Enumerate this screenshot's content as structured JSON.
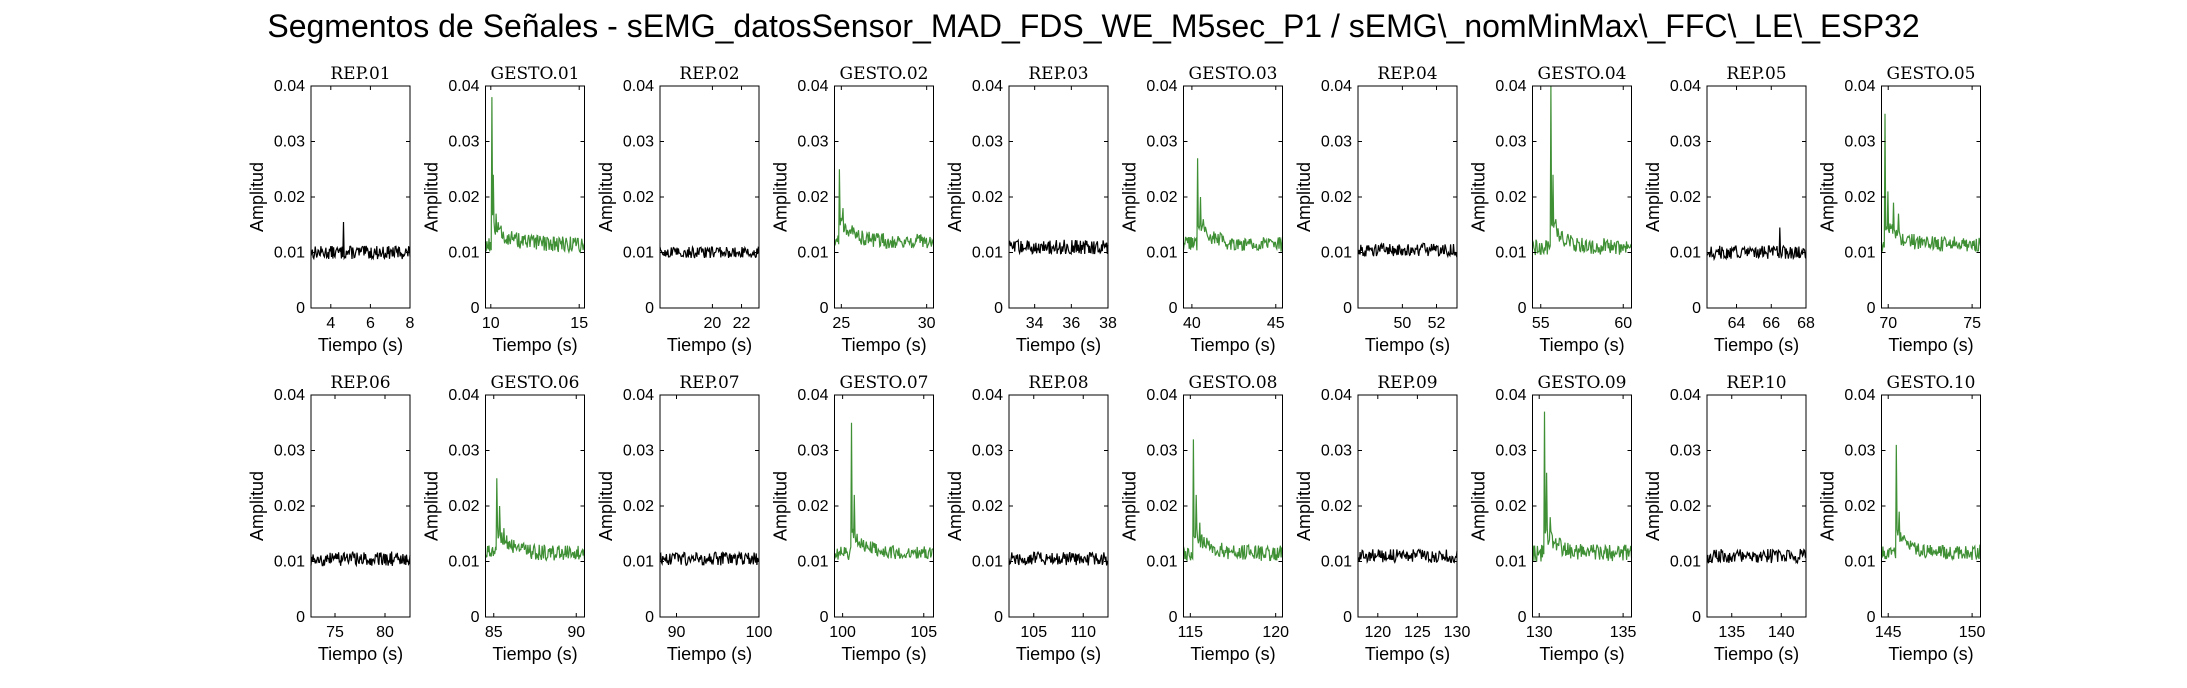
{
  "figure": {
    "title": "Segmentos de Señales - sEMG_datosSensor_MAD_FDS_WE_M5sec_P1 / sEMG\\_nomMinMax\\_FFC\\_LE\\_ESP32"
  },
  "colors": {
    "rep": "#000000",
    "gesto": "#3f8f35",
    "axes": "#000000"
  },
  "chart_data": [
    {
      "type": "line",
      "title": "REP_01",
      "kind": "rep",
      "xlim": [
        3,
        8
      ],
      "xticks": [
        4,
        6,
        8
      ],
      "ylim": [
        0,
        0.04
      ],
      "yticks": [
        0,
        0.01,
        0.02,
        0.03,
        0.04
      ],
      "ytick_labels": [
        "0",
        "0.01",
        "0.02",
        "0.03",
        "0.04"
      ],
      "xlabel": "Tiempo (s)",
      "ylabel": "Amplitud",
      "base": 0.01,
      "noise": 0.0012,
      "spikes": [
        [
          4.65,
          0.0155
        ]
      ]
    },
    {
      "type": "line",
      "title": "GESTO_01",
      "kind": "gesto",
      "xlim": [
        9.7,
        15.3
      ],
      "xticks": [
        10,
        15
      ],
      "ylim": [
        0,
        0.04
      ],
      "yticks": [
        0,
        0.01,
        0.02,
        0.03,
        0.04
      ],
      "ytick_labels": [
        "0",
        "0.01",
        "0.02",
        "0.03",
        "0.04"
      ],
      "xlabel": "Tiempo (s)",
      "ylabel": "Amplitud",
      "base": 0.0115,
      "noise": 0.0015,
      "spikes": [
        [
          10.05,
          0.038
        ],
        [
          10.15,
          0.024
        ],
        [
          10.3,
          0.017
        ]
      ]
    },
    {
      "type": "line",
      "title": "REP_02",
      "kind": "rep",
      "xlim": [
        16.4,
        23.2
      ],
      "xticks": [
        20,
        22
      ],
      "ylim": [
        0,
        0.04
      ],
      "yticks": [
        0,
        0.01,
        0.02,
        0.03,
        0.04
      ],
      "ytick_labels": [
        "0",
        "0.01",
        "0.02",
        "0.03",
        "0.04"
      ],
      "xlabel": "Tiempo (s)",
      "ylabel": "Amplitud",
      "base": 0.01,
      "noise": 0.001,
      "spikes": []
    },
    {
      "type": "line",
      "title": "GESTO_02",
      "kind": "gesto",
      "xlim": [
        24.6,
        30.4
      ],
      "xticks": [
        25,
        30
      ],
      "ylim": [
        0,
        0.04
      ],
      "yticks": [
        0,
        0.01,
        0.02,
        0.03,
        0.04
      ],
      "ytick_labels": [
        "0",
        "0.01",
        "0.02",
        "0.03",
        "0.04"
      ],
      "xlabel": "Tiempo (s)",
      "ylabel": "Amplitud",
      "base": 0.012,
      "noise": 0.0014,
      "spikes": [
        [
          24.9,
          0.025
        ],
        [
          25.1,
          0.018
        ]
      ]
    },
    {
      "type": "line",
      "title": "REP_03",
      "kind": "rep",
      "xlim": [
        32.6,
        38
      ],
      "xticks": [
        34,
        36,
        38
      ],
      "ylim": [
        0,
        0.04
      ],
      "yticks": [
        0,
        0.01,
        0.02,
        0.03,
        0.04
      ],
      "ytick_labels": [
        "0",
        "0.01",
        "0.02",
        "0.03",
        "0.04"
      ],
      "xlabel": "Tiempo (s)",
      "ylabel": "Amplitud",
      "base": 0.011,
      "noise": 0.0013,
      "spikes": []
    },
    {
      "type": "line",
      "title": "GESTO_03",
      "kind": "gesto",
      "xlim": [
        39.5,
        45.4
      ],
      "xticks": [
        40,
        45
      ],
      "ylim": [
        0,
        0.04
      ],
      "yticks": [
        0,
        0.01,
        0.02,
        0.03,
        0.04
      ],
      "ytick_labels": [
        "0",
        "0.01",
        "0.02",
        "0.03",
        "0.04"
      ],
      "xlabel": "Tiempo (s)",
      "ylabel": "Amplitud",
      "base": 0.0115,
      "noise": 0.0014,
      "spikes": [
        [
          40.35,
          0.027
        ],
        [
          40.5,
          0.02
        ],
        [
          40.7,
          0.016
        ]
      ]
    },
    {
      "type": "line",
      "title": "REP_04",
      "kind": "rep",
      "xlim": [
        47.4,
        53.2
      ],
      "xticks": [
        50,
        52
      ],
      "ylim": [
        0,
        0.04
      ],
      "yticks": [
        0,
        0.01,
        0.02,
        0.03,
        0.04
      ],
      "ytick_labels": [
        "0",
        "0.01",
        "0.02",
        "0.03",
        "0.04"
      ],
      "xlabel": "Tiempo (s)",
      "ylabel": "Amplitud",
      "base": 0.0105,
      "noise": 0.0012,
      "spikes": []
    },
    {
      "type": "line",
      "title": "GESTO_04",
      "kind": "gesto",
      "xlim": [
        54.5,
        60.5
      ],
      "xticks": [
        55,
        60
      ],
      "ylim": [
        0,
        0.04
      ],
      "yticks": [
        0,
        0.01,
        0.02,
        0.03,
        0.04
      ],
      "ytick_labels": [
        "0",
        "0.01",
        "0.02",
        "0.03",
        "0.04"
      ],
      "xlabel": "Tiempo (s)",
      "ylabel": "Amplitud",
      "base": 0.011,
      "noise": 0.0015,
      "spikes": [
        [
          55.6,
          0.04
        ],
        [
          55.75,
          0.024
        ],
        [
          55.9,
          0.016
        ]
      ]
    },
    {
      "type": "line",
      "title": "REP_05",
      "kind": "rep",
      "xlim": [
        62.3,
        68
      ],
      "xticks": [
        64,
        66,
        68
      ],
      "ylim": [
        0,
        0.04
      ],
      "yticks": [
        0,
        0.01,
        0.02,
        0.03,
        0.04
      ],
      "ytick_labels": [
        "0",
        "0.01",
        "0.02",
        "0.03",
        "0.04"
      ],
      "xlabel": "Tiempo (s)",
      "ylabel": "Amplitud",
      "base": 0.01,
      "noise": 0.0012,
      "spikes": [
        [
          66.5,
          0.0145
        ]
      ]
    },
    {
      "type": "line",
      "title": "GESTO_05",
      "kind": "gesto",
      "xlim": [
        69.6,
        75.5
      ],
      "xticks": [
        70,
        75
      ],
      "ylim": [
        0,
        0.04
      ],
      "yticks": [
        0,
        0.01,
        0.02,
        0.03,
        0.04
      ],
      "ytick_labels": [
        "0",
        "0.01",
        "0.02",
        "0.03",
        "0.04"
      ],
      "xlabel": "Tiempo (s)",
      "ylabel": "Amplitud",
      "base": 0.0115,
      "noise": 0.0014,
      "spikes": [
        [
          69.8,
          0.035
        ],
        [
          70.0,
          0.021
        ],
        [
          70.3,
          0.019
        ],
        [
          70.6,
          0.017
        ]
      ]
    },
    {
      "type": "line",
      "title": "REP_06",
      "kind": "rep",
      "xlim": [
        72.6,
        82.5
      ],
      "xticks": [
        75,
        80
      ],
      "ylim": [
        0,
        0.04
      ],
      "yticks": [
        0,
        0.01,
        0.02,
        0.03,
        0.04
      ],
      "ytick_labels": [
        "0",
        "0.01",
        "0.02",
        "0.03",
        "0.04"
      ],
      "xlabel": "Tiempo (s)",
      "ylabel": "Amplitud",
      "base": 0.0105,
      "noise": 0.0013,
      "spikes": []
    },
    {
      "type": "line",
      "title": "GESTO_06",
      "kind": "gesto",
      "xlim": [
        84.5,
        90.5
      ],
      "xticks": [
        85,
        90
      ],
      "ylim": [
        0,
        0.04
      ],
      "yticks": [
        0,
        0.01,
        0.02,
        0.03,
        0.04
      ],
      "ytick_labels": [
        "0",
        "0.01",
        "0.02",
        "0.03",
        "0.04"
      ],
      "xlabel": "Tiempo (s)",
      "ylabel": "Amplitud",
      "base": 0.0115,
      "noise": 0.0014,
      "spikes": [
        [
          85.2,
          0.025
        ],
        [
          85.35,
          0.02
        ],
        [
          85.6,
          0.016
        ]
      ]
    },
    {
      "type": "line",
      "title": "REP_07",
      "kind": "rep",
      "xlim": [
        88,
        100
      ],
      "xticks": [
        90,
        100
      ],
      "ylim": [
        0,
        0.04
      ],
      "yticks": [
        0,
        0.01,
        0.02,
        0.03,
        0.04
      ],
      "ytick_labels": [
        "0",
        "0.01",
        "0.02",
        "0.03",
        "0.04"
      ],
      "xlabel": "Tiempo (s)",
      "ylabel": "Amplitud",
      "base": 0.0105,
      "noise": 0.0012,
      "spikes": []
    },
    {
      "type": "line",
      "title": "GESTO_07",
      "kind": "gesto",
      "xlim": [
        99.5,
        105.6
      ],
      "xticks": [
        100,
        105
      ],
      "ylim": [
        0,
        0.04
      ],
      "yticks": [
        0,
        0.01,
        0.02,
        0.03,
        0.04
      ],
      "ytick_labels": [
        "0",
        "0.01",
        "0.02",
        "0.03",
        "0.04"
      ],
      "xlabel": "Tiempo (s)",
      "ylabel": "Amplitud",
      "base": 0.0115,
      "noise": 0.0012,
      "spikes": [
        [
          100.55,
          0.035
        ],
        [
          100.7,
          0.022
        ],
        [
          100.9,
          0.015
        ]
      ]
    },
    {
      "type": "line",
      "title": "REP_08",
      "kind": "rep",
      "xlim": [
        102.5,
        112.5
      ],
      "xticks": [
        105,
        110
      ],
      "ylim": [
        0,
        0.04
      ],
      "yticks": [
        0,
        0.01,
        0.02,
        0.03,
        0.04
      ],
      "ytick_labels": [
        "0",
        "0.01",
        "0.02",
        "0.03",
        "0.04"
      ],
      "xlabel": "Tiempo (s)",
      "ylabel": "Amplitud",
      "base": 0.0105,
      "noise": 0.0012,
      "spikes": []
    },
    {
      "type": "line",
      "title": "GESTO_08",
      "kind": "gesto",
      "xlim": [
        114.6,
        120.4
      ],
      "xticks": [
        115,
        120
      ],
      "ylim": [
        0,
        0.04
      ],
      "yticks": [
        0,
        0.01,
        0.02,
        0.03,
        0.04
      ],
      "ytick_labels": [
        "0",
        "0.01",
        "0.02",
        "0.03",
        "0.04"
      ],
      "xlabel": "Tiempo (s)",
      "ylabel": "Amplitud",
      "base": 0.0115,
      "noise": 0.0014,
      "spikes": [
        [
          115.2,
          0.032
        ],
        [
          115.35,
          0.022
        ],
        [
          115.55,
          0.017
        ]
      ]
    },
    {
      "type": "line",
      "title": "REP_09",
      "kind": "rep",
      "xlim": [
        117.5,
        130
      ],
      "xticks": [
        120,
        125,
        130
      ],
      "ylim": [
        0,
        0.04
      ],
      "yticks": [
        0,
        0.01,
        0.02,
        0.03,
        0.04
      ],
      "ytick_labels": [
        "0",
        "0.01",
        "0.02",
        "0.03",
        "0.04"
      ],
      "xlabel": "Tiempo (s)",
      "ylabel": "Amplitud",
      "base": 0.011,
      "noise": 0.0012,
      "spikes": []
    },
    {
      "type": "line",
      "title": "GESTO_09",
      "kind": "gesto",
      "xlim": [
        129.6,
        135.5
      ],
      "xticks": [
        130,
        135
      ],
      "ylim": [
        0,
        0.04
      ],
      "yticks": [
        0,
        0.01,
        0.02,
        0.03,
        0.04
      ],
      "ytick_labels": [
        "0",
        "0.01",
        "0.02",
        "0.03",
        "0.04"
      ],
      "xlabel": "Tiempo (s)",
      "ylabel": "Amplitud",
      "base": 0.0115,
      "noise": 0.0015,
      "spikes": [
        [
          130.3,
          0.037
        ],
        [
          130.45,
          0.026
        ],
        [
          130.65,
          0.018
        ]
      ]
    },
    {
      "type": "line",
      "title": "REP_10",
      "kind": "rep",
      "xlim": [
        132.5,
        142.5
      ],
      "xticks": [
        135,
        140
      ],
      "ylim": [
        0,
        0.04
      ],
      "yticks": [
        0,
        0.01,
        0.02,
        0.03,
        0.04
      ],
      "ytick_labels": [
        "0",
        "0.01",
        "0.02",
        "0.03",
        "0.04"
      ],
      "xlabel": "Tiempo (s)",
      "ylabel": "Amplitud",
      "base": 0.011,
      "noise": 0.0013,
      "spikes": []
    },
    {
      "type": "line",
      "title": "GESTO_10",
      "kind": "gesto",
      "xlim": [
        144.6,
        150.5
      ],
      "xticks": [
        145,
        150
      ],
      "ylim": [
        0,
        0.04
      ],
      "yticks": [
        0,
        0.01,
        0.02,
        0.03,
        0.04
      ],
      "ytick_labels": [
        "0",
        "0.01",
        "0.02",
        "0.03",
        "0.04"
      ],
      "xlabel": "Tiempo (s)",
      "ylabel": "Amplitud",
      "base": 0.0115,
      "noise": 0.0013,
      "spikes": [
        [
          145.5,
          0.031
        ],
        [
          145.65,
          0.019
        ]
      ]
    }
  ]
}
